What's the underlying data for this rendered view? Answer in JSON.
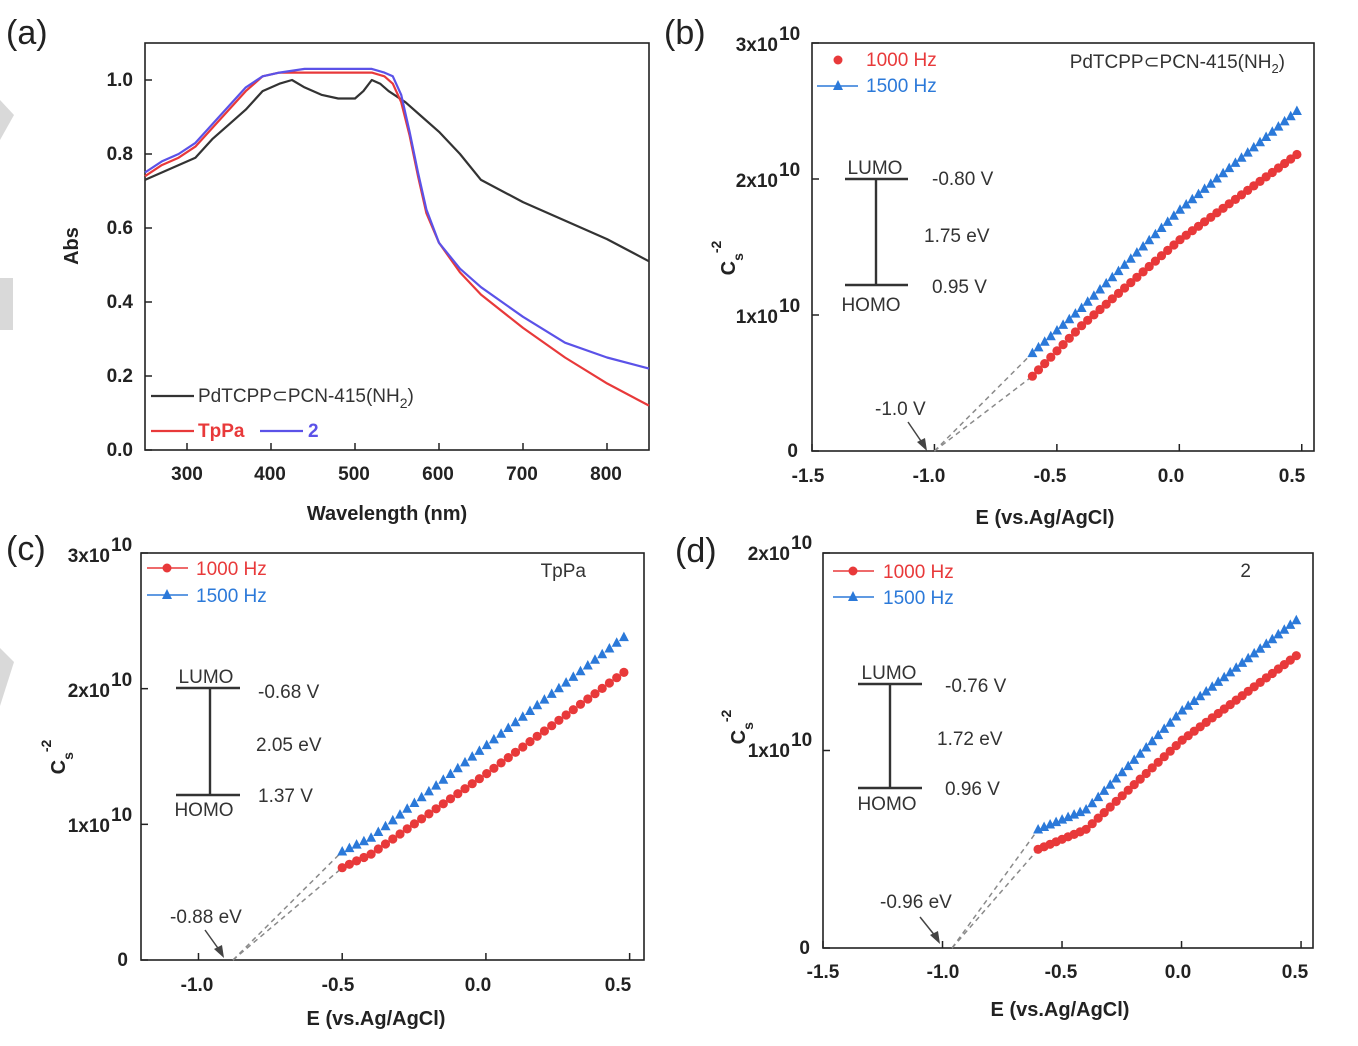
{
  "colors": {
    "red": "#e8393a",
    "blue": "#2b79d9",
    "purple": "#5b52e8",
    "black": "#333333",
    "dash": "#8a8a8a"
  },
  "panels": {
    "a": {
      "label": "(a)",
      "xlabel": "Wavelength (nm)",
      "ylabel": "Abs",
      "xticks": [
        "300",
        "400",
        "500",
        "600",
        "700",
        "800"
      ],
      "yticks": [
        "0.0",
        "0.2",
        "0.4",
        "0.6",
        "0.8",
        "1.0"
      ],
      "legend": {
        "pcn": "PdTCPP⊂PCN-415(NH",
        "pcn_sub": "2",
        "pcn_close": ")",
        "tppa": "TpPa",
        "two": "2"
      }
    },
    "b": {
      "label": "(b)",
      "title": "PdTCPP⊂PCN-415(NH",
      "title_sub": "2",
      "title_close": ")",
      "xlabel": "E (vs.Ag/AgCl)",
      "ylabel_main": "C",
      "ylabel_sub": "s",
      "ylabel_sup": "-2",
      "xticks": [
        "-1.5",
        "-1.0",
        "-0.5",
        "0.0",
        "0.5"
      ],
      "ytick_zero": "0",
      "ytick_mant": [
        "1x10",
        "2x10",
        "3x10"
      ],
      "ytick_exp": "10",
      "legend": [
        "1000 Hz",
        "1500 Hz"
      ],
      "lumo": "LUMO",
      "homo": "HOMO",
      "lumo_val": "-0.80 V",
      "gap": "1.75 eV",
      "homo_val": "0.95 V",
      "intercept": "-1.0 V"
    },
    "c": {
      "label": "(c)",
      "title": "TpPa",
      "xlabel": "E (vs.Ag/AgCl)",
      "ylabel_main": "C",
      "ylabel_sub": "s",
      "ylabel_sup": "-2",
      "xticks": [
        "-1.0",
        "-0.5",
        "0.0",
        "0.5"
      ],
      "ytick_zero": "0",
      "ytick_mant": [
        "1x10",
        "2x10",
        "3x10"
      ],
      "ytick_exp": "10",
      "legend": [
        "1000 Hz",
        "1500 Hz"
      ],
      "lumo": "LUMO",
      "homo": "HOMO",
      "lumo_val": "-0.68 V",
      "gap": "2.05 eV",
      "homo_val": "1.37 V",
      "intercept": "-0.88 eV"
    },
    "d": {
      "label": "(d)",
      "title": "2",
      "xlabel": "E (vs.Ag/AgCl)",
      "ylabel_main": "C",
      "ylabel_sub": "s",
      "ylabel_sup": "-2",
      "xticks": [
        "-1.5",
        "-1.0",
        "-0.5",
        "0.0",
        "0.5"
      ],
      "ytick_zero": "0",
      "ytick_mant": [
        "1x10",
        "2x10"
      ],
      "ytick_exp": "10",
      "legend": [
        "1000 Hz",
        "1500 Hz"
      ],
      "lumo": "LUMO",
      "homo": "HOMO",
      "lumo_val": "-0.76 V",
      "gap": "1.72 eV",
      "homo_val": "0.96 V",
      "intercept": "-0.96 eV"
    }
  },
  "chart_data": [
    {
      "panel": "a",
      "type": "line",
      "title": "",
      "xlabel": "Wavelength (nm)",
      "ylabel": "Abs",
      "xlim": [
        250,
        850
      ],
      "ylim": [
        0.0,
        1.1
      ],
      "series": [
        {
          "name": "PdTCPP⊂PCN-415(NH2)",
          "color": "black",
          "x": [
            250,
            270,
            290,
            310,
            330,
            350,
            370,
            390,
            410,
            425,
            440,
            460,
            480,
            500,
            510,
            520,
            530,
            540,
            560,
            580,
            600,
            625,
            650,
            700,
            750,
            800,
            850
          ],
          "y": [
            0.73,
            0.75,
            0.77,
            0.79,
            0.84,
            0.88,
            0.92,
            0.97,
            0.99,
            1.0,
            0.98,
            0.96,
            0.95,
            0.95,
            0.97,
            1.0,
            0.99,
            0.97,
            0.94,
            0.9,
            0.86,
            0.8,
            0.73,
            0.67,
            0.62,
            0.57,
            0.51
          ]
        },
        {
          "name": "TpPa",
          "color": "red",
          "x": [
            250,
            270,
            290,
            310,
            330,
            350,
            370,
            390,
            410,
            440,
            470,
            500,
            520,
            535,
            545,
            555,
            565,
            575,
            585,
            600,
            625,
            650,
            700,
            750,
            800,
            850
          ],
          "y": [
            0.74,
            0.77,
            0.79,
            0.82,
            0.87,
            0.92,
            0.97,
            1.01,
            1.02,
            1.02,
            1.02,
            1.02,
            1.02,
            1.01,
            0.99,
            0.94,
            0.85,
            0.74,
            0.64,
            0.56,
            0.48,
            0.42,
            0.33,
            0.25,
            0.18,
            0.12
          ]
        },
        {
          "name": "2",
          "color": "purple",
          "x": [
            250,
            270,
            290,
            310,
            330,
            350,
            370,
            390,
            410,
            440,
            470,
            500,
            520,
            535,
            545,
            555,
            565,
            575,
            585,
            600,
            625,
            650,
            700,
            750,
            800,
            850
          ],
          "y": [
            0.75,
            0.78,
            0.8,
            0.83,
            0.88,
            0.93,
            0.98,
            1.01,
            1.02,
            1.03,
            1.03,
            1.03,
            1.03,
            1.02,
            1.01,
            0.96,
            0.86,
            0.75,
            0.65,
            0.56,
            0.49,
            0.44,
            0.36,
            0.29,
            0.25,
            0.22
          ]
        }
      ]
    },
    {
      "panel": "b",
      "type": "scatter",
      "title": "PdTCPP⊂PCN-415(NH2)",
      "xlabel": "E (vs.Ag/AgCl)",
      "ylabel": "Cs^-2",
      "xlim": [
        -1.5,
        0.55
      ],
      "ylim": [
        0,
        30000000000.0
      ],
      "series": [
        {
          "name": "1000 Hz",
          "marker": "circle",
          "color": "red",
          "xrange": [
            -0.6,
            0.48
          ],
          "n": 44,
          "anchors_x": [
            -0.6,
            -0.4,
            0.0,
            0.48
          ],
          "anchors_y": [
            5500000000.0,
            9200000000.0,
            15500000000.0,
            21800000000.0
          ]
        },
        {
          "name": "1500 Hz",
          "marker": "triangle",
          "color": "blue",
          "xrange": [
            -0.6,
            0.48
          ],
          "n": 44,
          "anchors_x": [
            -0.6,
            -0.4,
            0.0,
            0.48
          ],
          "anchors_y": [
            7200000000.0,
            10500000000.0,
            17700000000.0,
            25000000000.0
          ]
        }
      ],
      "extrapolation_intercept": -1.0
    },
    {
      "panel": "c",
      "type": "scatter",
      "title": "TpPa",
      "xlabel": "E (vs.Ag/AgCl)",
      "ylabel": "Cs^-2",
      "xlim": [
        -1.2,
        0.55
      ],
      "ylim": [
        0,
        30000000000.0
      ],
      "series": [
        {
          "name": "1000 Hz",
          "marker": "circle",
          "color": "red",
          "xrange": [
            -0.5,
            0.48
          ],
          "n": 40,
          "anchors_x": [
            -0.5,
            -0.4,
            0.0,
            0.48
          ],
          "anchors_y": [
            6800000000.0,
            7800000000.0,
            13700000000.0,
            21200000000.0
          ]
        },
        {
          "name": "1500 Hz",
          "marker": "triangle",
          "color": "blue",
          "xrange": [
            -0.5,
            0.48
          ],
          "n": 40,
          "anchors_x": [
            -0.5,
            -0.4,
            0.0,
            0.48
          ],
          "anchors_y": [
            8000000000.0,
            9000000000.0,
            15800000000.0,
            23800000000.0
          ]
        }
      ],
      "extrapolation_intercept": -0.88
    },
    {
      "panel": "d",
      "type": "scatter",
      "title": "2",
      "xlabel": "E (vs.Ag/AgCl)",
      "ylabel": "Cs^-2",
      "xlim": [
        -1.5,
        0.55
      ],
      "ylim": [
        0,
        20000000000.0
      ],
      "series": [
        {
          "name": "1000 Hz",
          "marker": "circle",
          "color": "red",
          "xrange": [
            -0.6,
            0.48
          ],
          "n": 44,
          "anchors_x": [
            -0.6,
            -0.4,
            0.0,
            0.48
          ],
          "anchors_y": [
            5000000000.0,
            6000000000.0,
            10500000000.0,
            14800000000.0
          ]
        },
        {
          "name": "1500 Hz",
          "marker": "triangle",
          "color": "blue",
          "xrange": [
            -0.6,
            0.48
          ],
          "n": 44,
          "anchors_x": [
            -0.6,
            -0.4,
            0.0,
            0.48
          ],
          "anchors_y": [
            6000000000.0,
            7000000000.0,
            12000000000.0,
            16600000000.0
          ]
        }
      ],
      "extrapolation_intercept": -0.96
    }
  ]
}
